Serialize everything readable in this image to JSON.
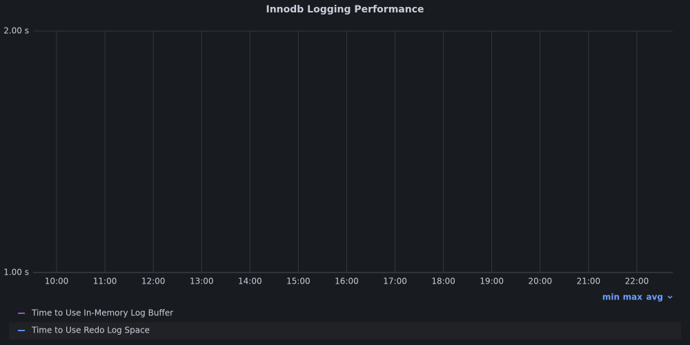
{
  "chart_data": {
    "type": "line",
    "title": "Innodb Logging Performance",
    "categories": [
      "10:00",
      "11:00",
      "12:00",
      "13:00",
      "14:00",
      "15:00",
      "16:00",
      "17:00",
      "18:00",
      "19:00",
      "20:00",
      "21:00",
      "22:00"
    ],
    "series": [
      {
        "name": "Time to Use In-Memory Log Buffer",
        "color": "#a352cc",
        "values": [
          null,
          null,
          null,
          null,
          null,
          null,
          null,
          null,
          null,
          null,
          null,
          null,
          null
        ]
      },
      {
        "name": "Time to Use Redo Log Space",
        "color": "#5794f2",
        "values": [
          null,
          null,
          null,
          null,
          null,
          null,
          null,
          null,
          null,
          null,
          null,
          null,
          null
        ]
      }
    ],
    "ylim": [
      1,
      2
    ],
    "yticks": [
      {
        "value": 1,
        "label": "1.00 s"
      },
      {
        "value": 2,
        "label": "2.00 s"
      }
    ],
    "grid": true,
    "legend_columns": [
      "min",
      "max",
      "avg"
    ]
  }
}
